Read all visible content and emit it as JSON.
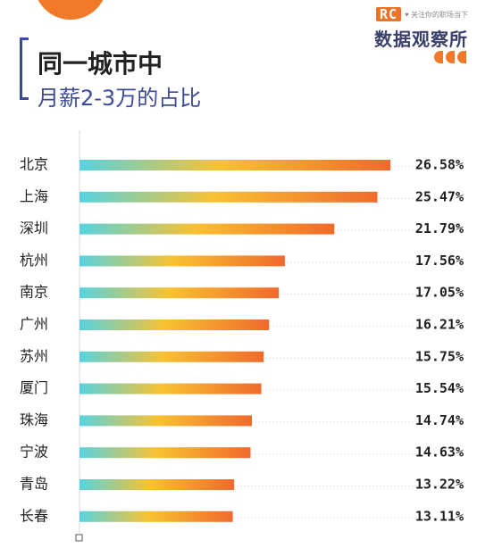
{
  "brand": {
    "logo_text": "RC",
    "note": "♥ 关注你的职场当下",
    "name": "数据观察所"
  },
  "header": {
    "title_line1": "同一城市中",
    "title_line2": "月薪2-3万的占比"
  },
  "colors": {
    "bar_start": "#56d3e0",
    "bar_mid": "#f8c232",
    "bar_end": "#ef6a2c",
    "accent": "#f07a2a",
    "title_blue": "#3c4a9a"
  },
  "chart_data": {
    "type": "bar",
    "orientation": "horizontal",
    "title": "同一城市中 月薪2-3万的占比",
    "categories": [
      "北京",
      "上海",
      "深圳",
      "杭州",
      "南京",
      "广州",
      "苏州",
      "厦门",
      "珠海",
      "宁波",
      "青岛",
      "长春"
    ],
    "values": [
      26.58,
      25.47,
      21.79,
      17.56,
      17.05,
      16.21,
      15.75,
      15.54,
      14.74,
      14.63,
      13.22,
      13.11
    ],
    "value_labels": [
      "26.58%",
      "25.47%",
      "21.79%",
      "17.56%",
      "17.05%",
      "16.21%",
      "15.75%",
      "15.54%",
      "14.74%",
      "14.63%",
      "13.22%",
      "13.11%"
    ],
    "unit": "%",
    "xlim": [
      0,
      27
    ],
    "grid": "horizontal dotted lines",
    "legend": "none"
  }
}
